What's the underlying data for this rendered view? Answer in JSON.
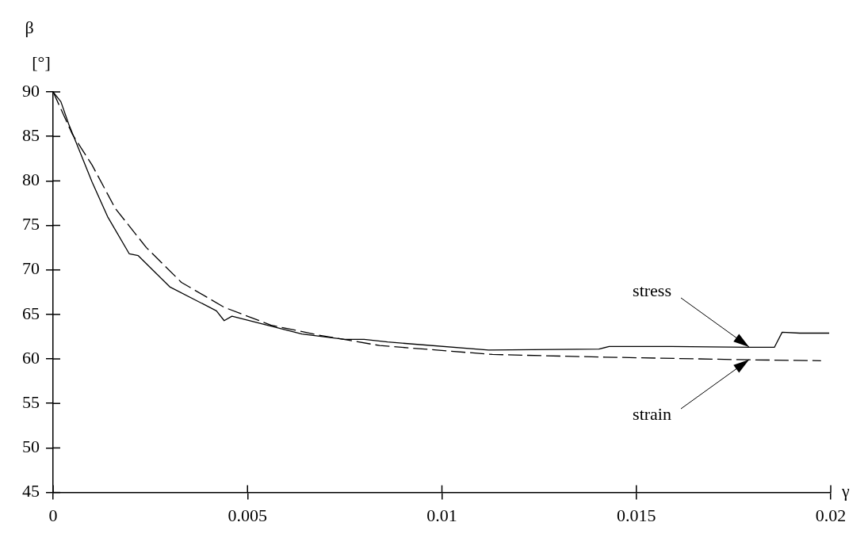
{
  "chart_data": {
    "type": "line",
    "xlabel": "γ",
    "ylabel": "β [°]",
    "xlim": [
      0,
      0.02
    ],
    "xticks": [
      0,
      0.005,
      0.01,
      0.015,
      0.02
    ],
    "ylim": [
      45,
      90
    ],
    "yticks": [
      45,
      50,
      55,
      60,
      65,
      70,
      75,
      80,
      85,
      90
    ],
    "grid": false,
    "legend": false,
    "marker": "none",
    "series": [
      {
        "color": "#000000",
        "line_style": "solid",
        "x": [
          0,
          0.0002,
          0.0004,
          0.001,
          0.0014,
          0.00196,
          0.00219,
          0.003,
          0.0042,
          0.0044,
          0.0046,
          0.0064,
          0.0075,
          0.008,
          0.0086,
          0.0112,
          0.01404,
          0.0143,
          0.0159,
          0.0179,
          0.01855,
          0.01875,
          0.0192,
          0.01996
        ],
        "values": [
          90,
          88.9,
          86.4,
          79.9,
          76.0,
          71.8,
          71.6,
          68.1,
          65.4,
          64.3,
          64.8,
          62.8,
          62.2,
          62.2,
          61.9,
          61.0,
          61.1,
          61.4,
          61.4,
          61.3,
          61.3,
          63.0,
          62.9,
          62.9
        ]
      },
      {
        "color": "#000000",
        "line_style": "dashed",
        "x": [
          0,
          0.0005,
          0.001,
          0.0016,
          0.0024,
          0.0033,
          0.0044,
          0.0056,
          0.0068,
          0.0084,
          0.0113,
          0.0142,
          0.0179,
          0.01975
        ],
        "values": [
          90,
          85.2,
          81.8,
          76.9,
          72.5,
          68.6,
          65.8,
          63.8,
          62.7,
          61.5,
          60.5,
          60.2,
          59.9,
          59.8
        ]
      }
    ],
    "annotations": [
      {
        "text": "stress",
        "x": 0.0179,
        "y": 61.3
      },
      {
        "text": "strain",
        "x": 0.0179,
        "y": 59.9
      }
    ]
  }
}
